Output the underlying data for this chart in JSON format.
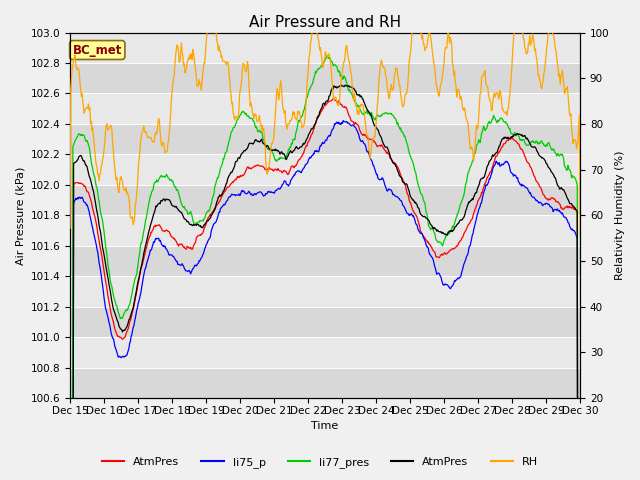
{
  "title": "Air Pressure and RH",
  "xlabel": "Time",
  "ylabel_left": "Air Pressure (kPa)",
  "ylabel_right": "Relativity Humidity (%)",
  "annotation": "BC_met",
  "ylim_left": [
    100.6,
    103.0
  ],
  "ylim_right": [
    20,
    100
  ],
  "yticks_left": [
    100.6,
    100.8,
    101.0,
    101.2,
    101.4,
    101.6,
    101.8,
    102.0,
    102.2,
    102.4,
    102.6,
    102.8,
    103.0
  ],
  "yticks_right": [
    20,
    30,
    40,
    50,
    60,
    70,
    80,
    90,
    100
  ],
  "xtick_labels": [
    "Dec 15",
    "Dec 16",
    "Dec 17",
    "Dec 18",
    "Dec 19",
    "Dec 20",
    "Dec 21",
    "Dec 22",
    "Dec 23",
    "Dec 24",
    "Dec 25",
    "Dec 26",
    "Dec 27",
    "Dec 28",
    "Dec 29",
    "Dec 30"
  ],
  "n_days": 15,
  "legend_entries": [
    {
      "label": "AtmPres",
      "color": "#ff0000"
    },
    {
      "label": "li75_p",
      "color": "#0000ff"
    },
    {
      "label": "li77_pres",
      "color": "#00cc00"
    },
    {
      "label": "AtmPres",
      "color": "#000000"
    },
    {
      "label": "RH",
      "color": "#ffa500"
    }
  ],
  "band_colors": [
    "#d8d8d8",
    "#e8e8e8"
  ],
  "grid_color": "#ffffff",
  "fig_facecolor": "#f0f0f0",
  "title_fontsize": 11,
  "label_fontsize": 8,
  "tick_fontsize": 7.5
}
